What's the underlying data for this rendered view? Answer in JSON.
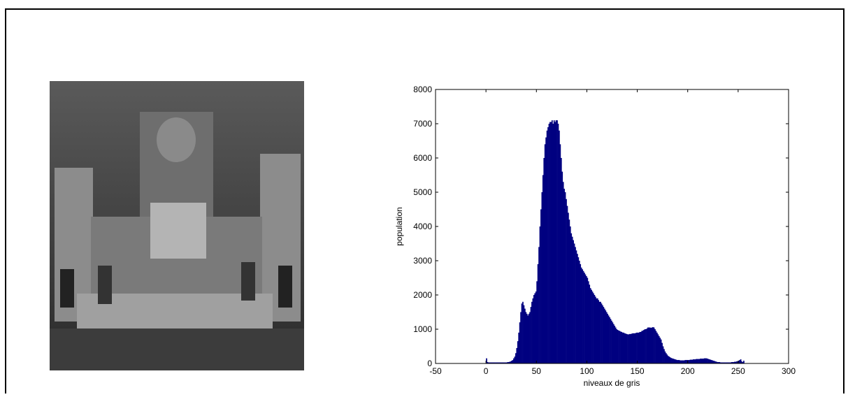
{
  "chart_data": {
    "type": "histogram",
    "xlabel": "niveaux de gris",
    "ylabel": "population",
    "color": "#000080",
    "xlim": [
      -50,
      300
    ],
    "xticks": [
      -50,
      0,
      50,
      100,
      150,
      200,
      250,
      300
    ],
    "ylim": [
      0,
      8000
    ],
    "yticks": [
      0,
      1000,
      2000,
      3000,
      4000,
      5000,
      6000,
      7000,
      8000
    ],
    "bins": [
      0,
      1,
      2,
      3,
      4,
      5,
      6,
      7,
      8,
      9,
      10,
      11,
      12,
      13,
      14,
      15,
      16,
      17,
      18,
      19,
      20,
      21,
      22,
      23,
      24,
      25,
      26,
      27,
      28,
      29,
      30,
      31,
      32,
      33,
      34,
      35,
      36,
      37,
      38,
      39,
      40,
      41,
      42,
      43,
      44,
      45,
      46,
      47,
      48,
      49,
      50,
      51,
      52,
      53,
      54,
      55,
      56,
      57,
      58,
      59,
      60,
      61,
      62,
      63,
      64,
      65,
      66,
      67,
      68,
      69,
      70,
      71,
      72,
      73,
      74,
      75,
      76,
      77,
      78,
      79,
      80,
      81,
      82,
      83,
      84,
      85,
      86,
      87,
      88,
      89,
      90,
      91,
      92,
      93,
      94,
      95,
      96,
      97,
      98,
      99,
      100,
      101,
      102,
      103,
      104,
      105,
      106,
      107,
      108,
      109,
      110,
      111,
      112,
      113,
      114,
      115,
      116,
      117,
      118,
      119,
      120,
      121,
      122,
      123,
      124,
      125,
      126,
      127,
      128,
      129,
      130,
      131,
      132,
      133,
      134,
      135,
      136,
      137,
      138,
      139,
      140,
      141,
      142,
      143,
      144,
      145,
      146,
      147,
      148,
      149,
      150,
      151,
      152,
      153,
      154,
      155,
      156,
      157,
      158,
      159,
      160,
      161,
      162,
      163,
      164,
      165,
      166,
      167,
      168,
      169,
      170,
      171,
      172,
      173,
      174,
      175,
      176,
      177,
      178,
      179,
      180,
      181,
      182,
      183,
      184,
      185,
      186,
      187,
      188,
      189,
      190,
      191,
      192,
      193,
      194,
      195,
      196,
      197,
      198,
      199,
      200,
      201,
      202,
      203,
      204,
      205,
      206,
      207,
      208,
      209,
      210,
      211,
      212,
      213,
      214,
      215,
      216,
      217,
      218,
      219,
      220,
      221,
      222,
      223,
      224,
      225,
      226,
      227,
      228,
      229,
      230,
      231,
      232,
      233,
      234,
      235,
      236,
      237,
      238,
      239,
      240,
      241,
      242,
      243,
      244,
      245,
      246,
      247,
      248,
      249,
      250,
      251,
      252,
      253,
      254,
      255,
      256
    ],
    "values": [
      150,
      40,
      30,
      30,
      30,
      30,
      30,
      30,
      30,
      30,
      30,
      30,
      30,
      30,
      30,
      30,
      30,
      30,
      30,
      30,
      30,
      40,
      40,
      50,
      60,
      80,
      100,
      150,
      200,
      300,
      450,
      650,
      900,
      1200,
      1500,
      1750,
      1800,
      1700,
      1600,
      1500,
      1450,
      1400,
      1450,
      1500,
      1650,
      1800,
      1900,
      2000,
      2050,
      2100,
      2400,
      2900,
      3400,
      4000,
      4500,
      5000,
      5500,
      6000,
      6400,
      6600,
      6800,
      6900,
      7000,
      7050,
      7050,
      7100,
      7000,
      7100,
      7050,
      7100,
      7100,
      7000,
      6800,
      6400,
      6000,
      5600,
      5300,
      5100,
      5000,
      4800,
      4600,
      4400,
      4200,
      4000,
      3800,
      3700,
      3600,
      3500,
      3400,
      3300,
      3200,
      3100,
      3000,
      2900,
      2800,
      2750,
      2700,
      2650,
      2600,
      2550,
      2500,
      2400,
      2300,
      2200,
      2150,
      2100,
      2050,
      2000,
      1950,
      1900,
      1900,
      1850,
      1800,
      1800,
      1750,
      1700,
      1650,
      1600,
      1550,
      1500,
      1450,
      1400,
      1350,
      1300,
      1250,
      1200,
      1150,
      1100,
      1050,
      1000,
      980,
      960,
      950,
      930,
      920,
      900,
      900,
      880,
      870,
      860,
      850,
      850,
      860,
      860,
      870,
      880,
      880,
      880,
      890,
      900,
      900,
      900,
      920,
      920,
      950,
      960,
      980,
      1000,
      1000,
      1020,
      1050,
      1050,
      1050,
      1040,
      1050,
      1060,
      1050,
      1000,
      950,
      900,
      850,
      800,
      750,
      700,
      600,
      500,
      420,
      350,
      300,
      260,
      220,
      200,
      180,
      160,
      150,
      140,
      130,
      120,
      110,
      100,
      100,
      100,
      90,
      90,
      90,
      90,
      90,
      100,
      100,
      100,
      100,
      100,
      110,
      110,
      110,
      120,
      120,
      120,
      130,
      130,
      130,
      130,
      140,
      140,
      140,
      140,
      150,
      150,
      150,
      140,
      130,
      120,
      110,
      100,
      90,
      80,
      70,
      60,
      50,
      40,
      40,
      40,
      30,
      30,
      30,
      30,
      30,
      30,
      30,
      30,
      30,
      30,
      30,
      40,
      40,
      40,
      50,
      50,
      60,
      60,
      80,
      100,
      120,
      60,
      40,
      80
    ]
  }
}
